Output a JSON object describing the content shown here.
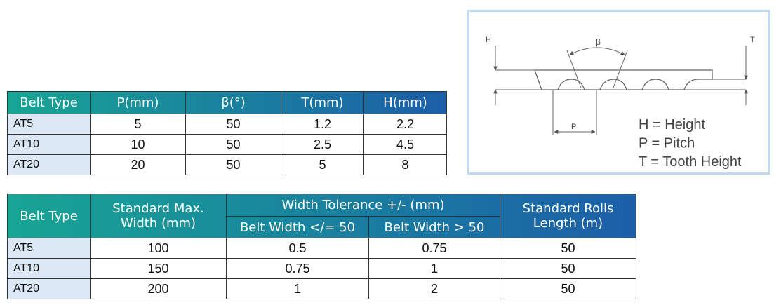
{
  "table1": {
    "header": [
      "Belt Type",
      "P(mm)",
      "β(°)",
      "T(mm)",
      "H(mm)"
    ],
    "rows": [
      [
        "AT5",
        "5",
        "50",
        "1.2",
        "2.2"
      ],
      [
        "AT10",
        "10",
        "50",
        "2.5",
        "4.5"
      ],
      [
        "AT20",
        "20",
        "50",
        "5",
        "8"
      ]
    ]
  },
  "table2": {
    "header": {
      "belt_type": "Belt Type",
      "max_width": "Standard Max. Width (mm)",
      "tolerance": "Width Tolerance +/- (mm)",
      "tol_le": "Belt Width </= 50",
      "tol_gt": "Belt Width > 50",
      "roll_length": "Standard Rolls Length (m)"
    },
    "rows": [
      [
        "AT5",
        "100",
        "0.5",
        "0.75",
        "50"
      ],
      [
        "AT10",
        "150",
        "0.75",
        "1",
        "50"
      ],
      [
        "AT20",
        "200",
        "1",
        "2",
        "50"
      ]
    ]
  },
  "diagram": {
    "labels": {
      "h": "H",
      "t": "T",
      "beta": "β",
      "p": "P"
    },
    "legend": [
      "H = Height",
      "P = Pitch",
      "T = Tooth Height"
    ]
  }
}
